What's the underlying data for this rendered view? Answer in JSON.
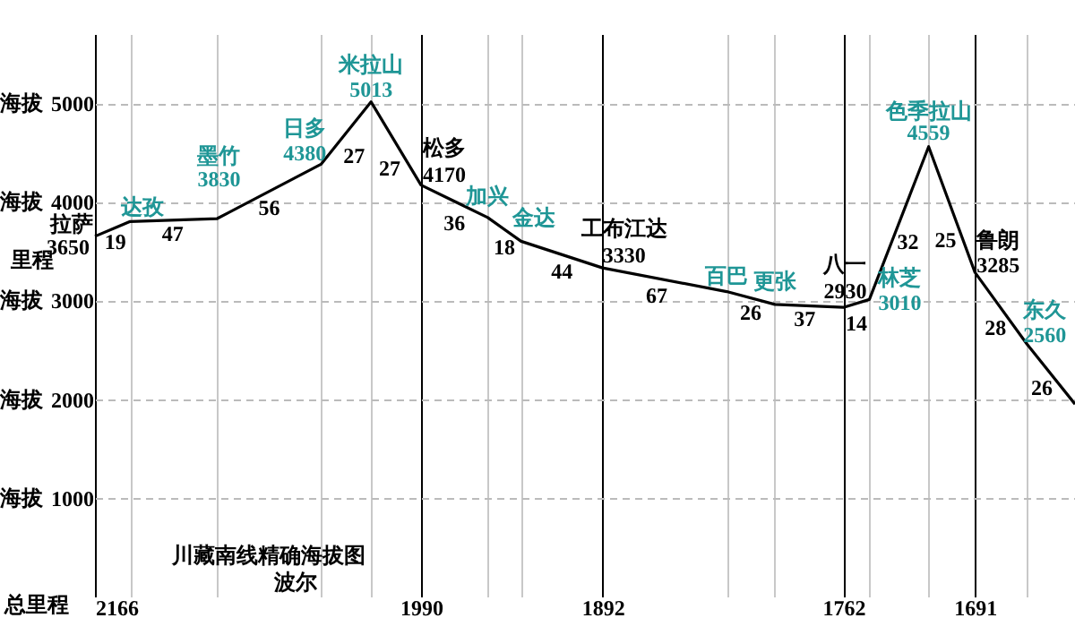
{
  "chart_data": {
    "type": "line",
    "xlabel": "总里程",
    "ylabel": "海拔",
    "x": [
      2166,
      2147,
      2100,
      2044,
      2017,
      1990,
      1954,
      1936,
      1892,
      1825,
      1799,
      1762,
      1748,
      1716,
      1691,
      1663,
      1637
    ],
    "values": [
      3650,
      3800,
      3830,
      4380,
      5013,
      4170,
      3840,
      3600,
      3330,
      3090,
      2960,
      2930,
      3010,
      4559,
      3285,
      2560,
      1950
    ],
    "value_labels": [
      "3650",
      null,
      "3830",
      "4380",
      "5013",
      "4170",
      null,
      null,
      "3330",
      null,
      null,
      "2930",
      "3010",
      "4559",
      "3285",
      "2560",
      null
    ],
    "color": "#000000",
    "xlim": [
      2166,
      1637
    ],
    "xticks": [
      2166,
      {
        "value": 2147,
        "label": null
      },
      {
        "value": 2100,
        "label": null
      },
      {
        "value": 2044,
        "label": null
      },
      {
        "value": 2017,
        "label": null
      },
      1990,
      {
        "value": 1954,
        "label": null
      },
      {
        "value": 1936,
        "label": null
      },
      1892,
      {
        "value": 1825,
        "label": null
      },
      {
        "value": 1799,
        "label": null
      },
      1762,
      {
        "value": 1748,
        "label": null
      },
      {
        "value": 1716,
        "label": null
      },
      1691,
      {
        "value": 1663,
        "label": null
      }
    ],
    "ylim": [
      0,
      5700
    ],
    "yticks": [
      1000,
      2000,
      3000,
      4000,
      5000
    ],
    "grid": true,
    "annotations": [
      "里程",
      "川藏南线精确海拔图",
      "波尔",
      {
        "text": "拉萨",
        "x": 2166,
        "y": 3650
      },
      {
        "text": "达孜",
        "x": 2147,
        "y": 3800
      },
      {
        "text": "墨竹",
        "x": 2100,
        "y": 3830
      },
      {
        "text": "日多",
        "x": 2044,
        "y": 4380
      },
      {
        "text": "米拉山",
        "x": 2017,
        "y": 5013
      },
      {
        "text": "松多",
        "x": 1990,
        "y": 4170
      },
      {
        "text": "加兴",
        "x": 1954,
        "y": 3840
      },
      {
        "text": "金达",
        "x": 1936,
        "y": 3600
      },
      {
        "text": "工布江达",
        "x": 1892,
        "y": 3330
      },
      {
        "text": "百巴",
        "x": 1825,
        "y": 3090
      },
      {
        "text": "更张",
        "x": 1799,
        "y": 2960
      },
      {
        "text": "八一",
        "x": 1762,
        "y": 2930
      },
      {
        "text": "林芝",
        "x": 1748,
        "y": 3010
      },
      {
        "text": "色季拉山",
        "x": 1716,
        "y": 4559
      },
      {
        "text": "鲁朗",
        "x": 1691,
        "y": 3285
      },
      {
        "text": "东久",
        "x": 1663,
        "y": 2560
      },
      {
        "text": "19",
        "x": 2156,
        "y": 3720
      },
      {
        "text": "47",
        "x": 2124,
        "y": 3820
      },
      {
        "text": "56",
        "x": 2072,
        "y": 4100
      },
      {
        "text": "27",
        "x": 2030,
        "y": 4700
      },
      {
        "text": "27",
        "x": 2004,
        "y": 4590
      },
      {
        "text": "36",
        "x": 1972,
        "y": 4000
      },
      {
        "text": "18",
        "x": 1945,
        "y": 3720
      },
      {
        "text": "44",
        "x": 1914,
        "y": 3460
      },
      {
        "text": "67",
        "x": 1858,
        "y": 3210
      },
      {
        "text": "26",
        "x": 1812,
        "y": 3020
      },
      {
        "text": "37",
        "x": 1780,
        "y": 2940
      },
      {
        "text": "14",
        "x": 1755,
        "y": 2970
      },
      {
        "text": "32",
        "x": 1732,
        "y": 3780
      },
      {
        "text": "25",
        "x": 1704,
        "y": 3920
      },
      {
        "text": "28",
        "x": 1677,
        "y": 2920
      },
      {
        "text": "26",
        "x": 1650,
        "y": 2260
      }
    ]
  }
}
